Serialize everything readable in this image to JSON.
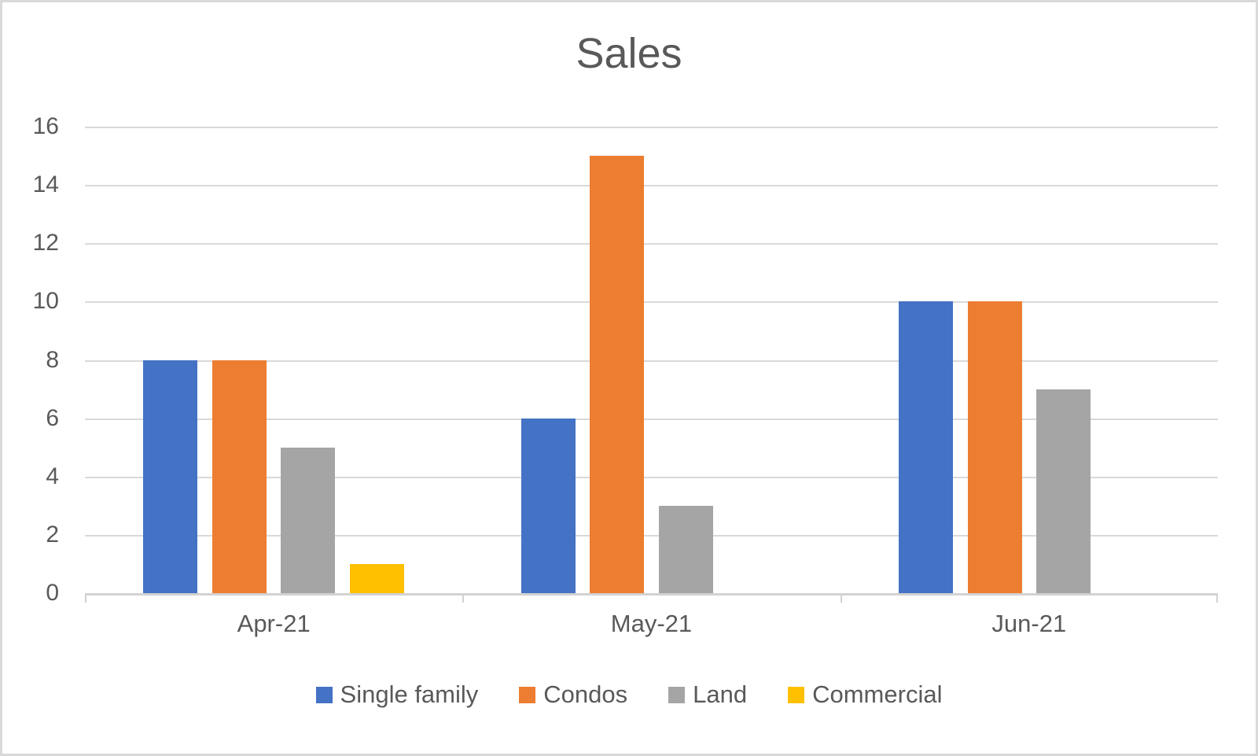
{
  "chart_data": {
    "type": "bar",
    "title": "Sales",
    "categories": [
      "Apr-21",
      "May-21",
      "Jun-21"
    ],
    "series": [
      {
        "name": "Single family",
        "color": "#4472C4",
        "values": [
          8,
          6,
          10
        ]
      },
      {
        "name": "Condos",
        "color": "#ED7D31",
        "values": [
          8,
          15,
          10
        ]
      },
      {
        "name": "Land",
        "color": "#A5A5A5",
        "values": [
          5,
          3,
          7
        ]
      },
      {
        "name": "Commercial",
        "color": "#FFC000",
        "values": [
          1,
          0,
          0
        ]
      }
    ],
    "y_axis": {
      "min": 0,
      "max": 16,
      "step": 2,
      "tick_labels": [
        "0",
        "2",
        "4",
        "6",
        "8",
        "10",
        "12",
        "14",
        "16"
      ]
    },
    "xlabel": "",
    "ylabel": "",
    "grid": true,
    "legend_position": "bottom"
  },
  "colors": {
    "text": "#595959",
    "gridline": "#D9D9D9",
    "axis_line": "#D2D2D2",
    "background": "#FFFFFF",
    "frame_border": "#D9D9D9"
  }
}
